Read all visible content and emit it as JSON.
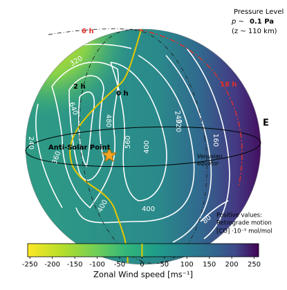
{
  "legend_box": {
    "title": "Pressure Level",
    "pressure_symbol": "p ~",
    "pressure_value": "0.1 Pa",
    "altitude": "(z ~ 110 km)"
  },
  "globe": {
    "local_times": [
      "6 h",
      "18 h",
      "2 h",
      "0 h"
    ],
    "direction": "E",
    "anti_solar_point": "Anti-Solar Point",
    "equator_label": [
      "Venusian",
      "equator"
    ],
    "contour_labels": [
      "320",
      "640",
      "480",
      "240",
      "320",
      "160",
      "560",
      "400",
      "360",
      "240",
      "400",
      "400",
      "80"
    ]
  },
  "note": [
    "Positive values:",
    "Retrograde motion",
    "[CO] ·10⁻⁵ mol/mol"
  ],
  "colorbar": {
    "label": "Zonal Wind speed [ms⁻¹]",
    "xlim": [
      -255,
      260
    ],
    "xticks": [
      -250,
      -200,
      -150,
      -100,
      -50,
      0,
      50,
      100,
      150,
      200,
      250
    ],
    "marker_value": 0,
    "colormap": "viridis_r"
  }
}
